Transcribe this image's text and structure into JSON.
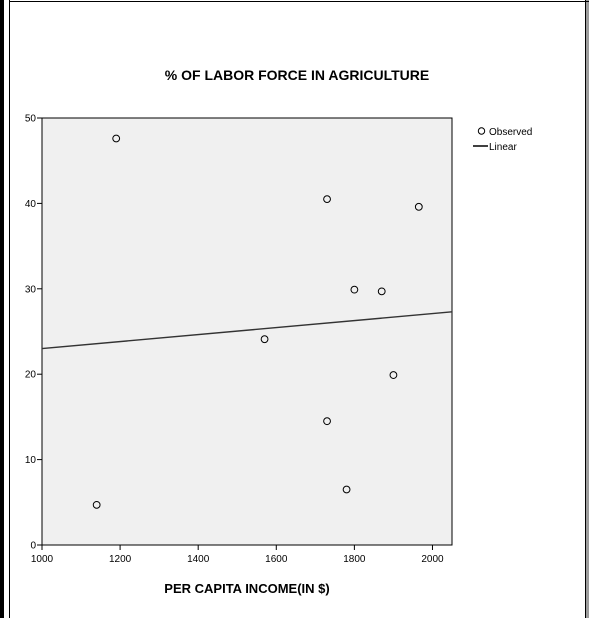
{
  "chart_data": {
    "type": "scatter",
    "title": "% OF LABOR FORCE IN AGRICULTURE",
    "xlabel": "PER CAPITA INCOME(IN $)",
    "ylabel": "",
    "xlim": [
      1000,
      2050
    ],
    "ylim": [
      0,
      50
    ],
    "x_ticks": [
      1000,
      1200,
      1400,
      1600,
      1800,
      2000
    ],
    "y_ticks": [
      0,
      10,
      20,
      30,
      40,
      50
    ],
    "grid": false,
    "legend_position": "top-right, outside plot",
    "plot_background": "#f0f0f0",
    "series": [
      {
        "name": "Observed",
        "marker": "open-circle",
        "points": [
          {
            "x": 1140,
            "y": 4.7
          },
          {
            "x": 1190,
            "y": 47.6
          },
          {
            "x": 1570,
            "y": 24.1
          },
          {
            "x": 1730,
            "y": 40.5
          },
          {
            "x": 1730,
            "y": 14.5
          },
          {
            "x": 1780,
            "y": 6.5
          },
          {
            "x": 1800,
            "y": 29.9
          },
          {
            "x": 1870,
            "y": 29.7
          },
          {
            "x": 1900,
            "y": 19.9
          },
          {
            "x": 1965,
            "y": 39.6
          }
        ]
      },
      {
        "name": "Linear",
        "type": "line",
        "points": [
          {
            "x": 1000,
            "y": 23.0
          },
          {
            "x": 2050,
            "y": 27.3
          }
        ]
      }
    ]
  }
}
